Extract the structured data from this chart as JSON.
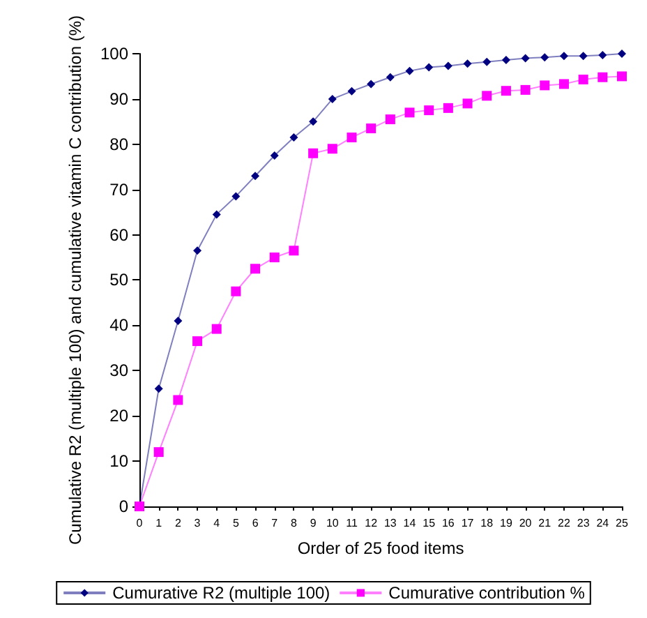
{
  "chart_data": {
    "type": "line",
    "xlabel": "Order of 25 food items",
    "ylabel": "Cumulative R2 (multiple 100) and cumulative vitamin C contribution (%)",
    "x": [
      0,
      1,
      2,
      3,
      4,
      5,
      6,
      7,
      8,
      9,
      10,
      11,
      12,
      13,
      14,
      15,
      16,
      17,
      18,
      19,
      20,
      21,
      22,
      23,
      24,
      25
    ],
    "xlim": [
      0,
      25
    ],
    "xticks": [
      0,
      1,
      2,
      3,
      4,
      5,
      6,
      7,
      8,
      9,
      10,
      11,
      12,
      13,
      14,
      15,
      16,
      17,
      18,
      19,
      20,
      21,
      22,
      23,
      24,
      25
    ],
    "ylim": [
      0,
      100
    ],
    "yticks": [
      0,
      10,
      20,
      30,
      40,
      50,
      60,
      70,
      80,
      90,
      100
    ],
    "grid": false,
    "legend": "bottom",
    "series": [
      {
        "name": "Cumurative R2 (multiple 100)",
        "color": "#000080",
        "marker": "diamond",
        "values": [
          0,
          26,
          41,
          56.5,
          64.5,
          68.5,
          73,
          77.5,
          81.5,
          85,
          90,
          91.7,
          93.3,
          94.8,
          96.2,
          97,
          97.3,
          97.8,
          98.2,
          98.6,
          99,
          99.2,
          99.5,
          99.5,
          99.7,
          100
        ]
      },
      {
        "name": "Cumurative contribution %",
        "color": "#ff00ff",
        "marker": "square",
        "values": [
          0,
          12,
          23.5,
          36.5,
          39.2,
          47.5,
          52.5,
          55,
          56.5,
          78,
          79,
          81.5,
          83.5,
          85.5,
          87,
          87.5,
          88,
          89,
          90.7,
          91.8,
          92,
          93,
          93.3,
          94.3,
          94.8,
          95
        ]
      }
    ]
  }
}
